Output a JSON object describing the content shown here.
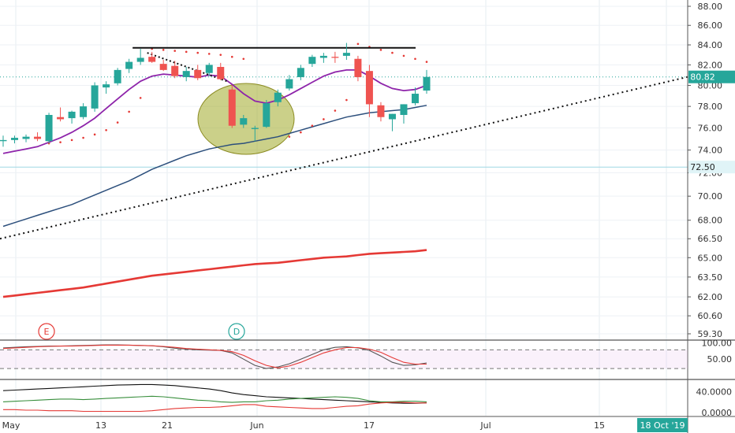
{
  "chart_data": {
    "type": "candlestick",
    "instrument_price_axis": {
      "ticks": [
        "88.00",
        "86.00",
        "84.00",
        "82.00",
        "80.00",
        "78.00",
        "76.00",
        "74.00",
        "72.00",
        "70.00",
        "68.00",
        "66.50",
        "65.00",
        "63.50",
        "62.00",
        "60.60",
        "59.30"
      ],
      "scale": "log",
      "last_price": "80.82",
      "level_label": "72.50"
    },
    "x_axis_ticks": [
      "May",
      "13",
      "21",
      "Jun",
      "17",
      "Jul",
      "15"
    ],
    "date_badge": "18 Oct '19",
    "markers": [
      {
        "label": "E",
        "color": "#e53935"
      },
      {
        "label": "D",
        "color": "#26a69a"
      }
    ],
    "candles": [
      {
        "o": 74.8,
        "h": 75.3,
        "l": 74.3,
        "c": 74.9
      },
      {
        "o": 74.9,
        "h": 75.3,
        "l": 74.6,
        "c": 75.1
      },
      {
        "o": 75.0,
        "h": 75.4,
        "l": 74.7,
        "c": 75.2
      },
      {
        "o": 75.2,
        "h": 75.6,
        "l": 74.8,
        "c": 75.0
      },
      {
        "o": 74.8,
        "h": 77.4,
        "l": 74.6,
        "c": 77.2
      },
      {
        "o": 77.0,
        "h": 77.9,
        "l": 76.6,
        "c": 76.8
      },
      {
        "o": 76.9,
        "h": 77.6,
        "l": 76.4,
        "c": 77.5
      },
      {
        "o": 77.0,
        "h": 78.3,
        "l": 76.8,
        "c": 78.0
      },
      {
        "o": 77.8,
        "h": 80.3,
        "l": 77.5,
        "c": 80.0
      },
      {
        "o": 79.8,
        "h": 80.4,
        "l": 79.2,
        "c": 80.1
      },
      {
        "o": 80.2,
        "h": 81.7,
        "l": 80.0,
        "c": 81.5
      },
      {
        "o": 81.6,
        "h": 82.6,
        "l": 81.2,
        "c": 82.3
      },
      {
        "o": 82.3,
        "h": 83.6,
        "l": 82.0,
        "c": 82.7
      },
      {
        "o": 82.8,
        "h": 83.3,
        "l": 82.2,
        "c": 82.3
      },
      {
        "o": 82.1,
        "h": 82.5,
        "l": 81.4,
        "c": 81.5
      },
      {
        "o": 81.9,
        "h": 82.4,
        "l": 80.7,
        "c": 80.9
      },
      {
        "o": 80.8,
        "h": 81.8,
        "l": 80.4,
        "c": 81.4
      },
      {
        "o": 81.5,
        "h": 82.0,
        "l": 80.5,
        "c": 80.7
      },
      {
        "o": 81.2,
        "h": 82.2,
        "l": 80.9,
        "c": 82.0
      },
      {
        "o": 81.8,
        "h": 82.2,
        "l": 80.5,
        "c": 80.6
      },
      {
        "o": 79.6,
        "h": 80.0,
        "l": 76.0,
        "c": 76.2
      },
      {
        "o": 76.3,
        "h": 77.2,
        "l": 76.0,
        "c": 76.9
      },
      {
        "o": 75.9,
        "h": 76.2,
        "l": 74.8,
        "c": 76.0
      },
      {
        "o": 76.1,
        "h": 78.6,
        "l": 76.0,
        "c": 78.3
      },
      {
        "o": 78.4,
        "h": 79.6,
        "l": 78.0,
        "c": 79.3
      },
      {
        "o": 79.7,
        "h": 81.0,
        "l": 79.5,
        "c": 80.6
      },
      {
        "o": 80.8,
        "h": 82.0,
        "l": 80.5,
        "c": 81.7
      },
      {
        "o": 82.1,
        "h": 83.0,
        "l": 81.8,
        "c": 82.8
      },
      {
        "o": 82.7,
        "h": 83.2,
        "l": 82.2,
        "c": 82.9
      },
      {
        "o": 82.8,
        "h": 83.3,
        "l": 82.2,
        "c": 82.7
      },
      {
        "o": 82.9,
        "h": 84.2,
        "l": 82.5,
        "c": 83.2
      },
      {
        "o": 82.6,
        "h": 82.9,
        "l": 80.4,
        "c": 80.8
      },
      {
        "o": 81.4,
        "h": 82.0,
        "l": 77.0,
        "c": 78.2
      },
      {
        "o": 78.1,
        "h": 78.4,
        "l": 76.6,
        "c": 77.0
      },
      {
        "o": 76.8,
        "h": 77.3,
        "l": 75.7,
        "c": 77.3
      },
      {
        "o": 77.2,
        "h": 78.2,
        "l": 76.4,
        "c": 78.2
      },
      {
        "o": 78.3,
        "h": 79.8,
        "l": 78.1,
        "c": 79.2
      },
      {
        "o": 79.5,
        "h": 81.5,
        "l": 79.2,
        "c": 80.82
      }
    ],
    "series": [
      {
        "color": "#8e24aa",
        "kind": "ma",
        "values": [
          73.7,
          73.9,
          74.1,
          74.3,
          74.7,
          75.1,
          75.6,
          76.2,
          76.9,
          77.8,
          78.7,
          79.6,
          80.4,
          80.9,
          81.1,
          81.0,
          80.9,
          80.8,
          81.0,
          80.9,
          80.1,
          79.2,
          78.5,
          78.3,
          78.6,
          79.1,
          79.7,
          80.3,
          80.9,
          81.3,
          81.5,
          81.5,
          80.9,
          80.2,
          79.7,
          79.5,
          79.6,
          80.0
        ]
      },
      {
        "color": "#2962ff",
        "kind": "ma",
        "values": [
          67.5,
          67.8,
          68.1,
          68.4,
          68.7,
          69.0,
          69.3,
          69.7,
          70.1,
          70.5,
          70.9,
          71.3,
          71.8,
          72.3,
          72.7,
          73.1,
          73.5,
          73.8,
          74.1,
          74.3,
          74.5,
          74.6,
          74.8,
          75.0,
          75.2,
          75.5,
          75.8,
          76.1,
          76.4,
          76.7,
          77.0,
          77.2,
          77.4,
          77.5,
          77.6,
          77.7,
          77.9,
          78.1
        ]
      },
      {
        "color": "#e53935",
        "kind": "ma",
        "values": [
          62.0,
          62.1,
          62.2,
          62.3,
          62.4,
          62.5,
          62.6,
          62.7,
          62.85,
          63.0,
          63.15,
          63.3,
          63.45,
          63.6,
          63.7,
          63.8,
          63.9,
          64.0,
          64.1,
          64.2,
          64.3,
          64.4,
          64.5,
          64.55,
          64.6,
          64.7,
          64.8,
          64.9,
          65.0,
          65.05,
          65.1,
          65.2,
          65.3,
          65.35,
          65.4,
          65.45,
          65.5,
          65.6
        ]
      },
      {
        "color": "#e53935",
        "kind": "sar",
        "values": [
          null,
          null,
          null,
          null,
          74.6,
          74.7,
          74.9,
          75.1,
          75.4,
          75.8,
          76.5,
          77.5,
          78.8,
          83.6,
          83.5,
          83.4,
          83.3,
          83.2,
          83.1,
          83.0,
          82.8,
          82.6,
          null,
          null,
          null,
          75.2,
          75.6,
          76.2,
          76.8,
          77.6,
          78.6,
          84.1,
          83.8,
          83.5,
          83.2,
          82.9,
          82.6,
          82.3
        ]
      },
      {
        "color": "#111111",
        "kind": "resistance",
        "from": 12,
        "to": 37,
        "value": 83.7
      },
      {
        "color": "#111111",
        "kind": "down-trend",
        "from": 13,
        "to": 20,
        "start": 83.2,
        "end": 80.4
      },
      {
        "color": "#111111",
        "kind": "up-trend",
        "start": 66.5,
        "end": 80.82
      }
    ],
    "oscillator_1": {
      "ticks": [
        "100.00",
        "50.00"
      ],
      "upper": 80,
      "lower": 20,
      "k": [
        86,
        88,
        90,
        91,
        92,
        92,
        93,
        94,
        95,
        96,
        96,
        95,
        94,
        93,
        90,
        85,
        82,
        80,
        79,
        78,
        70,
        50,
        30,
        20,
        25,
        35,
        50,
        65,
        80,
        88,
        90,
        86,
        78,
        60,
        40,
        30,
        32,
        38
      ],
      "d": [
        84,
        86,
        88,
        90,
        91,
        92,
        92,
        93,
        94,
        95,
        95,
        95,
        94,
        93,
        91,
        88,
        84,
        82,
        80,
        78,
        74,
        62,
        45,
        30,
        22,
        28,
        40,
        55,
        70,
        80,
        87,
        87,
        82,
        72,
        55,
        40,
        34,
        34
      ]
    },
    "oscillator_2": {
      "ticks": [
        "40.0000",
        "0.0000"
      ],
      "adx": [
        42,
        43,
        44,
        45,
        46,
        47,
        48,
        49,
        50,
        51,
        52,
        52.5,
        53,
        53,
        52,
        51,
        49,
        47,
        45,
        42,
        38,
        35,
        33,
        31,
        30,
        29,
        28,
        27,
        26,
        25,
        24,
        23,
        22,
        21,
        20,
        19.5,
        19.5,
        20
      ],
      "di_plus": [
        22,
        23,
        24,
        25,
        26,
        27,
        27,
        26,
        27,
        28,
        29,
        30,
        31,
        32,
        31,
        29,
        27,
        25,
        24,
        22,
        21,
        22,
        22,
        24,
        25,
        27,
        28,
        29,
        30,
        31,
        30,
        28,
        24,
        22,
        22,
        23,
        23,
        22
      ],
      "di_minus": [
        8,
        8,
        7,
        7,
        6,
        6,
        6,
        5,
        5,
        5,
        5,
        5,
        5,
        6,
        8,
        10,
        11,
        12,
        12,
        13,
        15,
        17,
        17,
        14,
        13,
        12,
        11,
        10,
        10,
        12,
        14,
        15,
        18,
        20,
        21,
        21,
        20,
        20
      ]
    }
  }
}
